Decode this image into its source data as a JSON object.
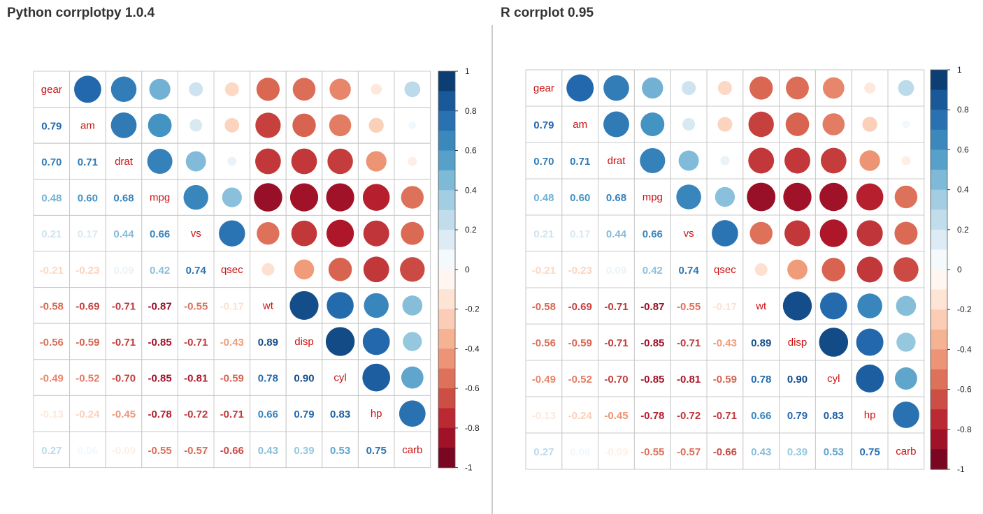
{
  "panels": {
    "left_title": "Python corrplotpy 1.0.4",
    "right_title": "R corrplot 0.95"
  },
  "chart_data": [
    {
      "type": "heatmap",
      "title": "Python corrplotpy 1.0.4",
      "variables": [
        "gear",
        "am",
        "drat",
        "mpg",
        "vs",
        "qsec",
        "wt",
        "disp",
        "cyl",
        "hp",
        "carb"
      ],
      "matrix": [
        [
          1,
          0.79,
          0.7,
          0.48,
          0.21,
          -0.21,
          -0.58,
          -0.56,
          -0.49,
          -0.13,
          0.27
        ],
        [
          0.79,
          1,
          0.71,
          0.6,
          0.17,
          -0.23,
          -0.69,
          -0.59,
          -0.52,
          -0.24,
          0.06
        ],
        [
          0.7,
          0.71,
          1,
          0.68,
          0.44,
          0.09,
          -0.71,
          -0.71,
          -0.7,
          -0.45,
          -0.09
        ],
        [
          0.48,
          0.6,
          0.68,
          1,
          0.66,
          0.42,
          -0.87,
          -0.85,
          -0.85,
          -0.78,
          -0.55
        ],
        [
          0.21,
          0.17,
          0.44,
          0.66,
          1,
          0.74,
          -0.55,
          -0.71,
          -0.81,
          -0.72,
          -0.57
        ],
        [
          -0.21,
          -0.23,
          0.09,
          0.42,
          0.74,
          1,
          -0.17,
          -0.43,
          -0.59,
          -0.71,
          -0.66
        ],
        [
          -0.58,
          -0.69,
          -0.71,
          -0.87,
          -0.55,
          -0.17,
          1,
          0.89,
          0.78,
          0.66,
          0.43
        ],
        [
          -0.56,
          -0.59,
          -0.71,
          -0.85,
          -0.71,
          -0.43,
          0.89,
          1,
          0.9,
          0.79,
          0.39
        ],
        [
          -0.49,
          -0.52,
          -0.7,
          -0.85,
          -0.81,
          -0.59,
          0.78,
          0.9,
          1,
          0.83,
          0.53
        ],
        [
          -0.13,
          -0.24,
          -0.45,
          -0.78,
          -0.72,
          -0.71,
          0.66,
          0.79,
          0.83,
          1,
          0.75
        ],
        [
          0.27,
          0.06,
          -0.09,
          -0.55,
          -0.57,
          -0.66,
          0.43,
          0.39,
          0.53,
          0.75,
          1
        ]
      ],
      "upper": "circle",
      "lower": "number",
      "diagonal": "label",
      "colorbar": {
        "ticks": [
          "1",
          "0.8",
          "0.6",
          "0.4",
          "0.2",
          "0",
          "-0.2",
          "-0.4",
          "-0.6",
          "-0.8",
          "-1"
        ],
        "range": [
          -1,
          1
        ]
      },
      "label_color": "#cc1111"
    },
    {
      "type": "heatmap",
      "title": "R corrplot 0.95",
      "variables": [
        "gear",
        "am",
        "drat",
        "mpg",
        "vs",
        "qsec",
        "wt",
        "disp",
        "cyl",
        "hp",
        "carb"
      ],
      "matrix": [
        [
          1,
          0.79,
          0.7,
          0.48,
          0.21,
          -0.21,
          -0.58,
          -0.56,
          -0.49,
          -0.13,
          0.27
        ],
        [
          0.79,
          1,
          0.71,
          0.6,
          0.17,
          -0.23,
          -0.69,
          -0.59,
          -0.52,
          -0.24,
          0.06
        ],
        [
          0.7,
          0.71,
          1,
          0.68,
          0.44,
          0.09,
          -0.71,
          -0.71,
          -0.7,
          -0.45,
          -0.09
        ],
        [
          0.48,
          0.6,
          0.68,
          1,
          0.66,
          0.42,
          -0.87,
          -0.85,
          -0.85,
          -0.78,
          -0.55
        ],
        [
          0.21,
          0.17,
          0.44,
          0.66,
          1,
          0.74,
          -0.55,
          -0.71,
          -0.81,
          -0.72,
          -0.57
        ],
        [
          -0.21,
          -0.23,
          0.09,
          0.42,
          0.74,
          1,
          -0.17,
          -0.43,
          -0.59,
          -0.71,
          -0.66
        ],
        [
          -0.58,
          -0.69,
          -0.71,
          -0.87,
          -0.55,
          -0.17,
          1,
          0.89,
          0.78,
          0.66,
          0.43
        ],
        [
          -0.56,
          -0.59,
          -0.71,
          -0.85,
          -0.71,
          -0.43,
          0.89,
          1,
          0.9,
          0.79,
          0.39
        ],
        [
          -0.49,
          -0.52,
          -0.7,
          -0.85,
          -0.81,
          -0.59,
          0.78,
          0.9,
          1,
          0.83,
          0.53
        ],
        [
          -0.13,
          -0.24,
          -0.45,
          -0.78,
          -0.72,
          -0.71,
          0.66,
          0.79,
          0.83,
          1,
          0.75
        ],
        [
          0.27,
          0.06,
          -0.09,
          -0.55,
          -0.57,
          -0.66,
          0.43,
          0.39,
          0.53,
          0.75,
          1
        ]
      ],
      "upper": "circle",
      "lower": "number",
      "diagonal": "label",
      "colorbar": {
        "ticks": [
          "1",
          "0.8",
          "0.6",
          "0.4",
          "0.2",
          "0",
          "-0.2",
          "-0.4",
          "-0.6",
          "-0.8",
          "-1"
        ],
        "range": [
          -1,
          1
        ]
      },
      "label_color": "#cc1111"
    }
  ]
}
